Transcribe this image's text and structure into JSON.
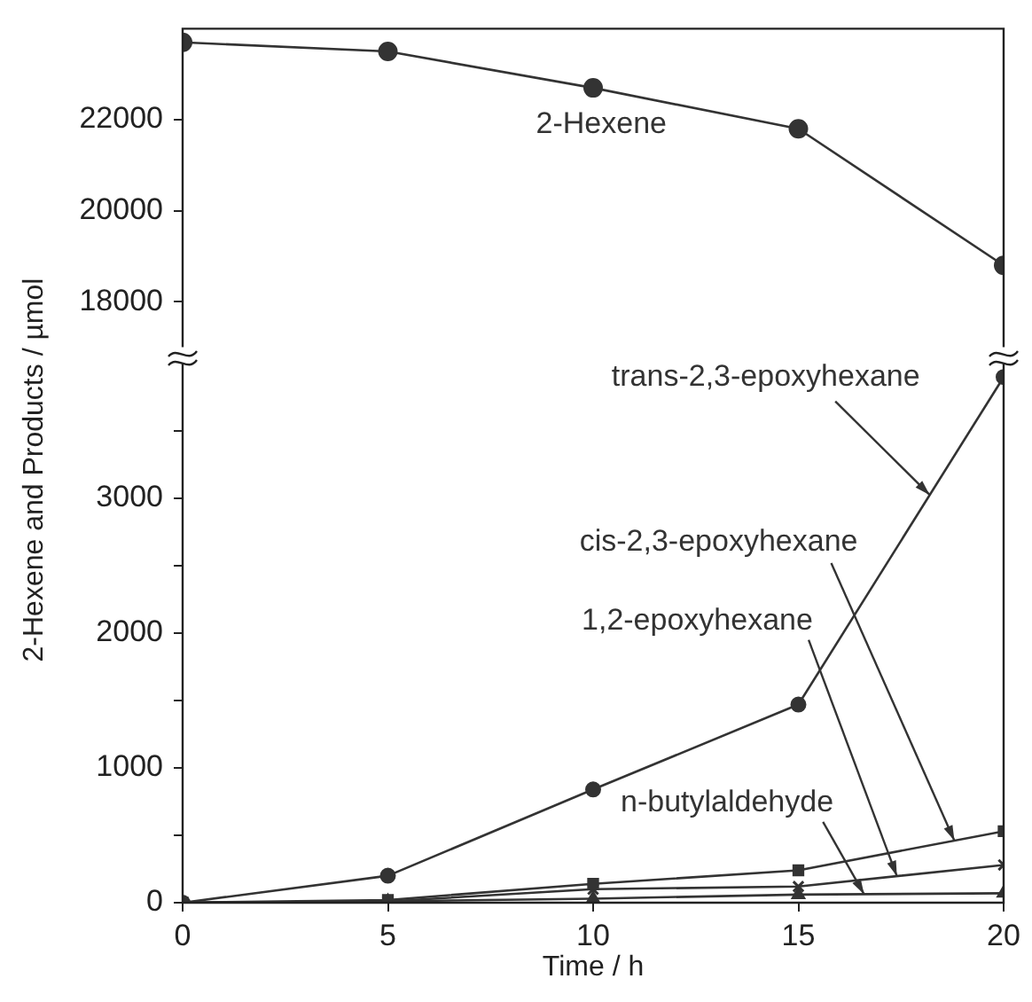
{
  "chart_data": [
    {
      "type": "line",
      "x": [
        0,
        5,
        10,
        15,
        20
      ],
      "xlim": [
        0,
        20
      ],
      "ylim": [
        17000,
        24000
      ],
      "yticks": [
        18000,
        20000,
        22000
      ],
      "tick_labels": "y",
      "series": [
        {
          "name": "2-Hexene",
          "color": "#333333",
          "marker": "circle",
          "values": [
            23700,
            23500,
            22700,
            21800,
            18800
          ]
        }
      ]
    },
    {
      "type": "line",
      "xlabel": "Time / h",
      "ylabel": "2-Hexene and Products / µmol",
      "x": [
        0,
        5,
        10,
        15,
        20
      ],
      "xlim": [
        0,
        20
      ],
      "xticks": [
        0,
        5,
        10,
        15,
        20
      ],
      "ylim": [
        0,
        4000
      ],
      "yticks": [
        0,
        {
          "value": 500,
          "label": null
        },
        1000,
        {
          "value": 1500,
          "label": null
        },
        2000,
        {
          "value": 2500,
          "label": null
        },
        3000,
        {
          "value": 3500,
          "label": null
        }
      ],
      "series": [
        {
          "name": "trans-2,3-epoxyhexane",
          "color": "#333333",
          "marker": "circle",
          "values": [
            0,
            200,
            840,
            1470,
            3900
          ]
        },
        {
          "name": "cis-2,3-epoxyhexane",
          "color": "#333333",
          "marker": "square",
          "values": [
            0,
            20,
            140,
            240,
            530
          ]
        },
        {
          "name": "1,2-epoxyhexane",
          "color": "#333333",
          "marker": "cross",
          "values": [
            0,
            10,
            100,
            120,
            280
          ]
        },
        {
          "name": "n-butylaldehyde",
          "color": "#333333",
          "marker": "triangle",
          "values": [
            0,
            10,
            30,
            60,
            70
          ]
        }
      ]
    }
  ]
}
